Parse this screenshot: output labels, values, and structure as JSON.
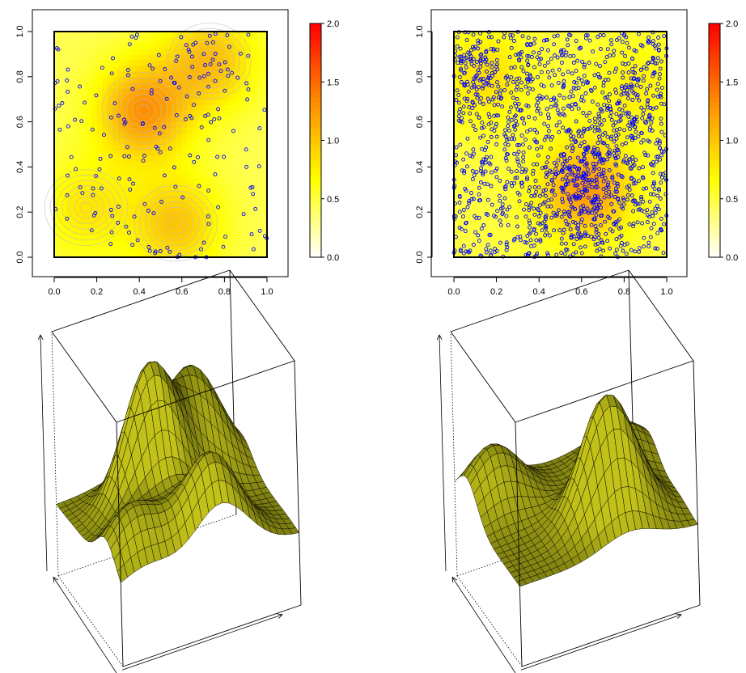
{
  "figure": {
    "background": "#ffffff"
  },
  "chart_data": [
    {
      "type": "heatmap",
      "title": "",
      "xlabel": "",
      "ylabel": "",
      "xlim": [
        0,
        1
      ],
      "ylim": [
        0,
        1
      ],
      "x_ticks": [
        "0.0",
        "0.2",
        "0.4",
        "0.6",
        "0.8",
        "1.0"
      ],
      "y_ticks": [
        "0.0",
        "0.2",
        "0.4",
        "0.6",
        "0.8",
        "1.0"
      ],
      "colorbar": {
        "range": [
          0,
          2
        ],
        "ticks": [
          "0.0",
          "0.5",
          "1.0",
          "1.5",
          "2.0"
        ],
        "palette": "heat",
        "colors": [
          "#ffffff",
          "#ffff00",
          "#ff8c00",
          "#ff0000"
        ]
      },
      "contour_lines": true,
      "contour_color": "#c0c0c0",
      "point_color": "#0000ff",
      "point_count": 200,
      "intensity_peaks": [
        {
          "x": 0.42,
          "y": 0.65,
          "value": 1.3
        },
        {
          "x": 0.73,
          "y": 0.87,
          "value": 1.05
        },
        {
          "x": 0.57,
          "y": 0.15,
          "value": 1.0
        },
        {
          "x": 0.15,
          "y": 0.22,
          "value": 0.8
        }
      ],
      "intensity_baseline": 0.45
    },
    {
      "type": "heatmap",
      "title": "",
      "xlabel": "",
      "ylabel": "",
      "xlim": [
        0,
        1
      ],
      "ylim": [
        0,
        1
      ],
      "x_ticks": [
        "0.0",
        "0.2",
        "0.4",
        "0.6",
        "0.8",
        "1.0"
      ],
      "y_ticks": [
        "0.0",
        "0.2",
        "0.4",
        "0.6",
        "0.8",
        "1.0"
      ],
      "colorbar": {
        "range": [
          0,
          2
        ],
        "ticks": [
          "0.0",
          "0.5",
          "1.0",
          "1.5",
          "2.0"
        ],
        "palette": "heat",
        "colors": [
          "#ffffff",
          "#ffff00",
          "#ff8c00",
          "#ff0000"
        ]
      },
      "contour_lines": false,
      "point_color": "#0000ff",
      "point_count": 1500,
      "intensity_peaks": [
        {
          "x": 0.62,
          "y": 0.3,
          "value": 1.25
        },
        {
          "x": 0.15,
          "y": 0.8,
          "value": 0.85
        },
        {
          "x": 0.85,
          "y": 0.75,
          "value": 0.75
        }
      ],
      "intensity_baseline": 0.5
    },
    {
      "type": "surface",
      "title": "",
      "axis_labels": [
        "",
        "",
        ""
      ],
      "surface_color": "#9a9a14",
      "mesh_color": "#000000",
      "grid": [
        26,
        20
      ]
    },
    {
      "type": "surface",
      "title": "",
      "axis_labels": [
        "",
        "",
        ""
      ],
      "surface_color": "#9a9a14",
      "mesh_color": "#000000",
      "grid": [
        26,
        20
      ]
    }
  ]
}
